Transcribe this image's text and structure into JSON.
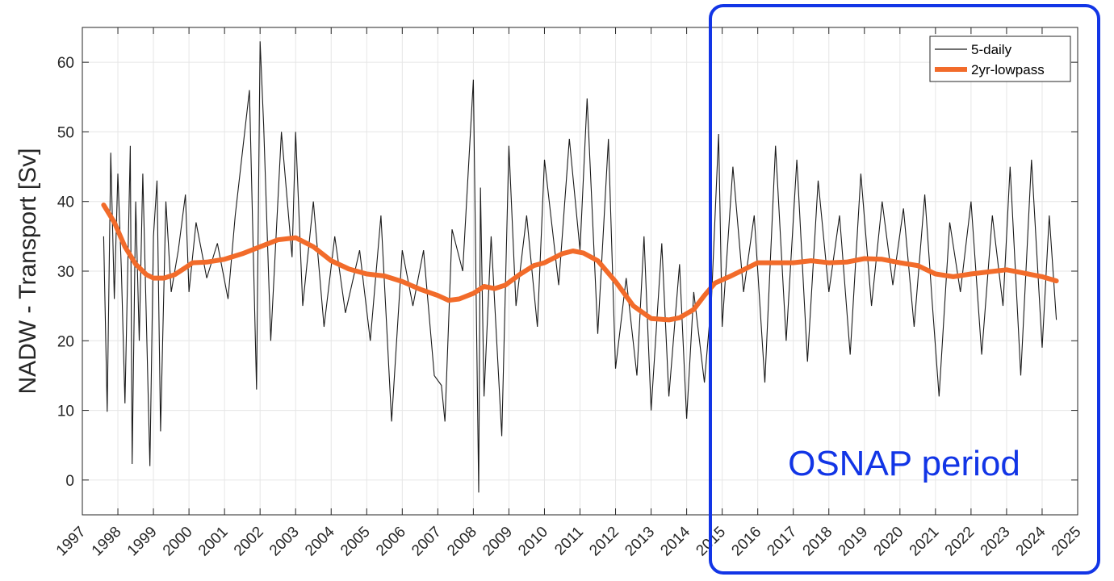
{
  "chart_data": {
    "type": "line",
    "ylabel": "NADW - Transport [Sv]",
    "xlabel": "",
    "xlim": [
      1997,
      2025
    ],
    "ylim": [
      -5,
      65
    ],
    "grid": true,
    "x_ticks": [
      "1997",
      "1998",
      "1999",
      "2000",
      "2001",
      "2002",
      "2003",
      "2004",
      "2005",
      "2006",
      "2007",
      "2008",
      "2009",
      "2010",
      "2011",
      "2012",
      "2013",
      "2014",
      "2015",
      "2016",
      "2017",
      "2018",
      "2019",
      "2020",
      "2021",
      "2022",
      "2023",
      "2024",
      "2025"
    ],
    "y_ticks": [
      "0",
      "10",
      "20",
      "30",
      "40",
      "50",
      "60"
    ],
    "legend": {
      "position": "top-right",
      "entries": [
        "5-daily",
        "2yr-lowpass"
      ]
    },
    "colors": {
      "daily": "#1a1a1a",
      "lowpass": "#f26b2a",
      "annotation": "#1235e6",
      "grid": "#e6e6e6"
    },
    "series": [
      {
        "name": "5-daily",
        "style": "thin-black",
        "x": [
          1997.6,
          1997.7,
          1997.8,
          1997.9,
          1998.0,
          1998.1,
          1998.2,
          1998.35,
          1998.4,
          1998.5,
          1998.6,
          1998.7,
          1998.9,
          1999.0,
          1999.1,
          1999.2,
          1999.35,
          1999.5,
          1999.7,
          1999.9,
          2000.0,
          2000.2,
          2000.5,
          2000.8,
          2001.1,
          2001.3,
          2001.7,
          2001.9,
          2002.0,
          2002.1,
          2002.3,
          2002.6,
          2002.9,
          2003.0,
          2003.2,
          2003.5,
          2003.8,
          2004.1,
          2004.4,
          2004.8,
          2005.1,
          2005.4,
          2005.7,
          2006.0,
          2006.3,
          2006.6,
          2006.9,
          2007.1,
          2007.2,
          2007.4,
          2007.7,
          2008.0,
          2008.15,
          2008.2,
          2008.3,
          2008.5,
          2008.8,
          2009.0,
          2009.2,
          2009.5,
          2009.8,
          2010.0,
          2010.4,
          2010.7,
          2011.0,
          2011.2,
          2011.5,
          2011.8,
          2012.0,
          2012.3,
          2012.6,
          2012.8,
          2013.0,
          2013.3,
          2013.5,
          2013.8,
          2014.0,
          2014.2,
          2014.5,
          2014.7,
          2014.9,
          2015.0,
          2015.3,
          2015.6,
          2015.9,
          2016.2,
          2016.5,
          2016.8,
          2017.1,
          2017.4,
          2017.7,
          2018.0,
          2018.3,
          2018.6,
          2018.9,
          2019.2,
          2019.5,
          2019.8,
          2020.1,
          2020.4,
          2020.7,
          2020.9,
          2021.1,
          2021.4,
          2021.7,
          2022.0,
          2022.3,
          2022.6,
          2022.9,
          2023.1,
          2023.4,
          2023.7,
          2024.0,
          2024.2,
          2024.4
        ],
        "values": [
          35,
          9.8,
          47,
          26,
          44,
          30,
          11,
          48,
          2.3,
          40,
          20,
          44,
          2,
          35,
          43,
          7,
          40,
          27,
          33,
          41,
          27,
          37,
          29,
          34,
          26,
          38,
          56,
          13,
          63,
          51,
          20,
          50,
          32,
          50,
          25,
          40,
          22,
          35,
          24,
          33,
          20,
          38,
          8.4,
          33,
          25,
          33,
          15,
          13.6,
          8.4,
          36,
          30,
          57.5,
          -1.8,
          42,
          12,
          35,
          6.3,
          48,
          25,
          38,
          22,
          46,
          28,
          49,
          33,
          54.8,
          21,
          49,
          16,
          29,
          15,
          35,
          10,
          34,
          12,
          31,
          8.8,
          27,
          14,
          26,
          49.7,
          22,
          45,
          27,
          38,
          14,
          48,
          20,
          46,
          17,
          43,
          27,
          38,
          18,
          44,
          25,
          40,
          28,
          39,
          22,
          41,
          26,
          12,
          37,
          27,
          40,
          18,
          38,
          25,
          45,
          15,
          46,
          19,
          38,
          23
        ]
      },
      {
        "name": "2yr-lowpass",
        "style": "thick-orange",
        "x": [
          1997.6,
          1997.9,
          1998.2,
          1998.5,
          1998.8,
          1999.0,
          1999.3,
          1999.6,
          1999.9,
          2000.1,
          2000.5,
          2001.0,
          2001.5,
          2002.0,
          2002.5,
          2003.0,
          2003.5,
          2004.0,
          2004.5,
          2005.0,
          2005.5,
          2006.0,
          2006.5,
          2007.0,
          2007.3,
          2007.6,
          2008.0,
          2008.3,
          2008.6,
          2008.9,
          2009.3,
          2009.7,
          2010.0,
          2010.5,
          2010.8,
          2011.1,
          2011.5,
          2012.0,
          2012.5,
          2013.0,
          2013.5,
          2013.8,
          2014.2,
          2014.5,
          2014.8,
          2015.2,
          2015.6,
          2016.0,
          2016.4,
          2017.0,
          2017.5,
          2018.0,
          2018.5,
          2019.0,
          2019.5,
          2020.0,
          2020.5,
          2021.0,
          2021.5,
          2022.0,
          2022.5,
          2023.0,
          2023.5,
          2024.0,
          2024.4
        ],
        "values": [
          39.5,
          37,
          33.5,
          31,
          29.5,
          29,
          29,
          29.5,
          30.5,
          31.2,
          31.3,
          31.7,
          32.5,
          33.5,
          34.5,
          34.8,
          33.5,
          31.5,
          30.3,
          29.6,
          29.3,
          28.5,
          27.4,
          26.5,
          25.8,
          26,
          26.8,
          27.8,
          27.5,
          28,
          29.5,
          30.8,
          31.2,
          32.5,
          32.9,
          32.6,
          31.5,
          28.5,
          25,
          23.2,
          23,
          23.3,
          24.5,
          26.5,
          28.3,
          29.2,
          30.2,
          31.2,
          31.2,
          31.2,
          31.5,
          31.2,
          31.3,
          31.8,
          31.7,
          31.2,
          30.8,
          29.6,
          29.2,
          29.6,
          29.9,
          30.2,
          29.7,
          29.2,
          28.6
        ]
      }
    ],
    "annotations": [
      {
        "text": "OSNAP period",
        "x_range": [
          2014.6,
          2025.3
        ],
        "style": "blue-rounded-box"
      }
    ]
  }
}
